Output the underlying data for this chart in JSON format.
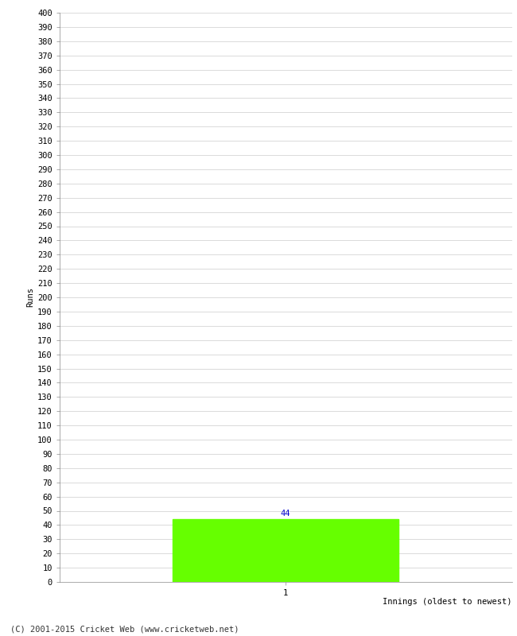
{
  "bar_values": [
    44
  ],
  "bar_positions": [
    1
  ],
  "bar_color": "#66ff00",
  "bar_width": 0.5,
  "xlabel": "Innings (oldest to newest)",
  "ylabel": "Runs",
  "ylim": [
    0,
    400
  ],
  "ytick_step": 10,
  "xlim": [
    0.5,
    1.5
  ],
  "xtick_labels": [
    "1"
  ],
  "annotation_color": "#0000cc",
  "annotation_fontsize": 7.5,
  "footer_text": "(C) 2001-2015 Cricket Web (www.cricketweb.net)",
  "background_color": "#ffffff",
  "grid_color": "#cccccc",
  "tick_fontsize": 7.5,
  "label_fontsize": 7.5,
  "xlabel_fontsize": 7.5
}
